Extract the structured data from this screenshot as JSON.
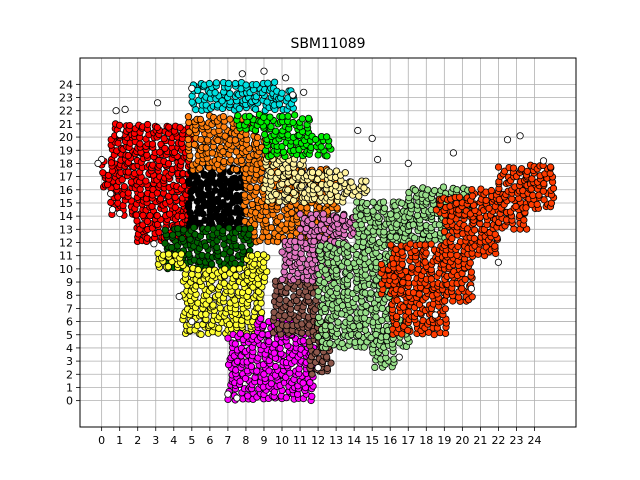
{
  "chart_data": {
    "type": "scatter",
    "title": "SBM11089",
    "xlabel": "",
    "ylabel": "",
    "xlim": [
      -1.2,
      26.3
    ],
    "ylim": [
      -2.0,
      26.0
    ],
    "xticks": [
      0,
      1,
      2,
      3,
      4,
      5,
      6,
      7,
      8,
      9,
      10,
      11,
      12,
      13,
      14,
      15,
      16,
      17,
      18,
      19,
      20,
      21,
      22,
      23,
      24
    ],
    "yticks": [
      0,
      1,
      2,
      3,
      4,
      5,
      6,
      7,
      8,
      9,
      10,
      11,
      12,
      13,
      14,
      15,
      16,
      17,
      18,
      19,
      20,
      21,
      22,
      23,
      24
    ],
    "grid": true,
    "clusters": [
      {
        "color": "#ff0000",
        "regions": [
          [
            0.5,
            14.0,
            4.8,
            21.0
          ],
          [
            1.8,
            12.0,
            4.8,
            14.0
          ],
          [
            0.0,
            16.0,
            0.5,
            18.0
          ]
        ]
      },
      {
        "color": "#000000",
        "regions": [
          [
            4.8,
            13.0,
            7.8,
            17.5
          ]
        ]
      },
      {
        "color": "#ff7f0e",
        "regions": [
          [
            4.8,
            17.5,
            8.5,
            21.5
          ],
          [
            7.8,
            12.0,
            12.5,
            17.5
          ],
          [
            8.5,
            17.5,
            9.5,
            20.0
          ],
          [
            12.5,
            13.0,
            13.0,
            17.0
          ]
        ]
      },
      {
        "color": "#006400",
        "regions": [
          [
            3.5,
            10.0,
            8.0,
            13.0
          ]
        ]
      },
      {
        "color": "#ffff33",
        "regions": [
          [
            4.5,
            5.0,
            8.8,
            10.0
          ],
          [
            8.0,
            9.0,
            9.0,
            11.0
          ],
          [
            3.0,
            10.0,
            4.5,
            11.0
          ]
        ]
      },
      {
        "color": "#ff00ff",
        "regions": [
          [
            7.0,
            0.0,
            11.5,
            5.0
          ],
          [
            8.5,
            5.0,
            10.5,
            6.0
          ]
        ]
      },
      {
        "color": "#8c564b",
        "regions": [
          [
            9.5,
            5.0,
            12.0,
            9.0
          ],
          [
            11.5,
            2.0,
            12.5,
            6.0
          ]
        ]
      },
      {
        "color": "#e377c2",
        "regions": [
          [
            10.0,
            9.0,
            13.0,
            12.0
          ],
          [
            11.0,
            12.0,
            13.5,
            14.0
          ],
          [
            13.0,
            12.5,
            14.0,
            14.0
          ]
        ]
      },
      {
        "color": "#98df8a",
        "regions": [
          [
            12.0,
            4.0,
            16.0,
            12.0
          ],
          [
            14.0,
            12.0,
            17.0,
            15.0
          ],
          [
            15.0,
            2.5,
            16.0,
            5.0
          ],
          [
            16.0,
            12.0,
            19.0,
            14.0
          ],
          [
            17.0,
            14.0,
            20.5,
            16.0
          ],
          [
            16.5,
            4.0,
            17.0,
            6.0
          ]
        ]
      },
      {
        "color": "#fff3a0",
        "regions": [
          [
            9.0,
            15.0,
            11.0,
            19.0
          ],
          [
            11.0,
            15.0,
            13.5,
            17.5
          ],
          [
            13.5,
            15.5,
            14.5,
            16.5
          ]
        ]
      },
      {
        "color": "#00ee00",
        "regions": [
          [
            9.0,
            18.5,
            11.5,
            21.5
          ],
          [
            7.5,
            20.5,
            9.0,
            21.5
          ],
          [
            11.5,
            18.5,
            12.5,
            20.0
          ]
        ]
      },
      {
        "color": "#00e0e0",
        "regions": [
          [
            5.0,
            22.0,
            9.5,
            24.0
          ],
          [
            9.5,
            22.0,
            10.5,
            23.5
          ]
        ]
      },
      {
        "color": "#ff3c00",
        "regions": [
          [
            16.0,
            5.0,
            19.0,
            12.0
          ],
          [
            19.0,
            7.5,
            20.5,
            14.5
          ],
          [
            20.5,
            11.0,
            22.0,
            16.0
          ],
          [
            22.0,
            13.0,
            23.5,
            17.5
          ],
          [
            23.5,
            14.5,
            24.8,
            18.0
          ],
          [
            18.5,
            14.0,
            20.5,
            15.5
          ],
          [
            15.5,
            8.0,
            16.5,
            10.5
          ]
        ]
      }
    ]
  }
}
